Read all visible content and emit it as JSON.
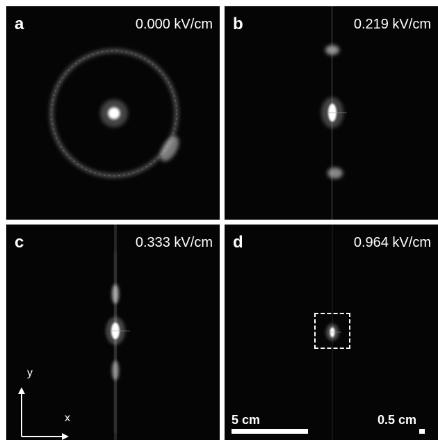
{
  "panels": {
    "a": {
      "label": "a",
      "field": "0.000 kV/cm"
    },
    "b": {
      "label": "b",
      "field": "0.219 kV/cm"
    },
    "c": {
      "label": "c",
      "field": "0.333 kV/cm"
    },
    "d": {
      "label": "d",
      "field": "0.964 kV/cm"
    }
  },
  "axes": {
    "x_label": "x",
    "y_label": "y"
  },
  "scale_bars": {
    "large": "5 cm",
    "small": "0.5 cm"
  },
  "colors": {
    "background": "#050505",
    "foreground": "#ffffff",
    "gap": "#ffffff"
  }
}
